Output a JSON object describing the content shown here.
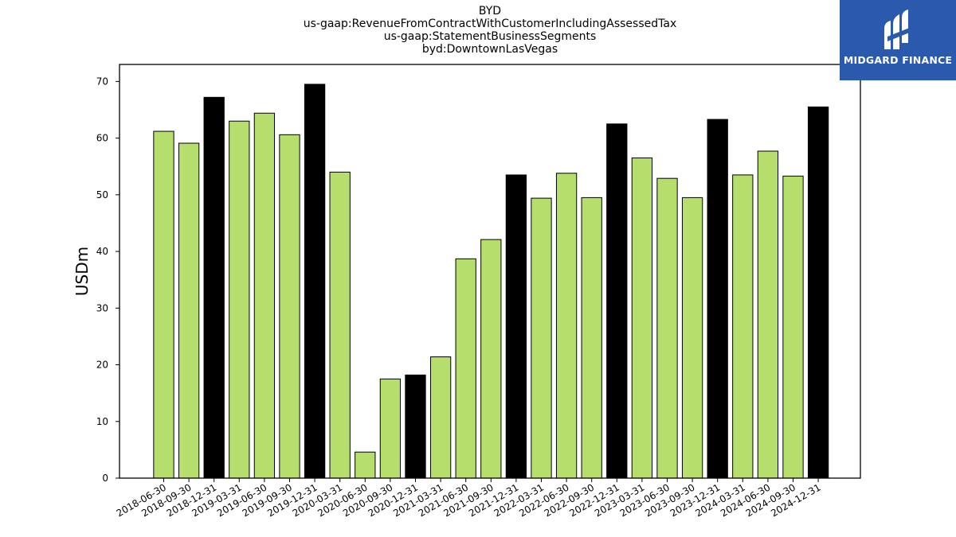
{
  "title_lines": [
    "BYD",
    "us-gaap:RevenueFromContractWithCustomerIncludingAssessedTax",
    "us-gaap:StatementBusinessSegments",
    "byd:DowntownLasVegas"
  ],
  "logo": {
    "text": "MIDGARD FINANCE",
    "background": "#2a59ad",
    "icon": "midgard-logo-icon"
  },
  "chart_data": {
    "type": "bar",
    "ylabel": "USDm",
    "xlabel": "",
    "ylim": [
      0,
      73
    ],
    "yticks": [
      0,
      10,
      20,
      30,
      40,
      50,
      60,
      70
    ],
    "grid": false,
    "colors": {
      "quarter": "#b5de6c",
      "year_end": "#000000",
      "edge": "#000000"
    },
    "categories": [
      "2018-06-30",
      "2018-09-30",
      "2018-12-31",
      "2019-03-31",
      "2019-06-30",
      "2019-09-30",
      "2019-12-31",
      "2020-03-31",
      "2020-06-30",
      "2020-09-30",
      "2020-12-31",
      "2021-03-31",
      "2021-06-30",
      "2021-09-30",
      "2021-12-31",
      "2022-03-31",
      "2022-06-30",
      "2022-09-30",
      "2022-12-31",
      "2023-03-31",
      "2023-06-30",
      "2023-09-30",
      "2023-12-31",
      "2024-03-31",
      "2024-06-30",
      "2024-09-30",
      "2024-12-31"
    ],
    "values": [
      61.2,
      59.1,
      67.2,
      63.0,
      64.4,
      60.6,
      69.5,
      54.0,
      4.6,
      17.5,
      18.2,
      21.4,
      38.7,
      42.1,
      53.5,
      49.4,
      53.8,
      49.5,
      62.5,
      56.5,
      52.9,
      49.5,
      63.3,
      53.5,
      57.7,
      53.3,
      65.5
    ],
    "year_end": [
      false,
      false,
      true,
      false,
      false,
      false,
      true,
      false,
      false,
      false,
      true,
      false,
      false,
      false,
      true,
      false,
      false,
      false,
      true,
      false,
      false,
      false,
      true,
      false,
      false,
      false,
      true
    ]
  }
}
